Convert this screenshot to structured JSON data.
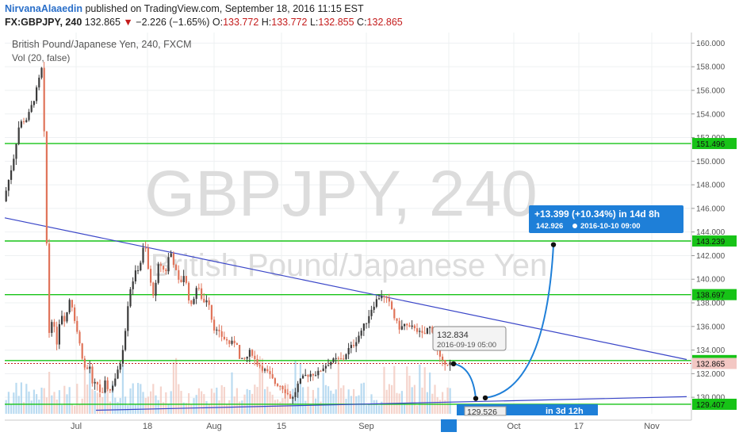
{
  "header": {
    "author": "NirvanaAlaaedin",
    "published_text": "published on TradingView.com, September 18, 2016 11:15 EST",
    "symbol": "FX:GBPJPY, 240",
    "last": "132.865",
    "change": "−2.226 (−1.65%)",
    "o_label": "O:",
    "o_value": "133.772",
    "h_label": "H:",
    "h_value": "133.772",
    "l_label": "L:",
    "l_value": "132.855",
    "c_label": "C:",
    "c_value": "132.865"
  },
  "chart_data": {
    "type": "candlestick",
    "title": "British Pound/Japanese Yen, 240, FXCM",
    "subtitle": "Vol (20, false)",
    "watermark_symbol": "GBPJPY, 240",
    "watermark_name": "British Pound/Japanese Yen",
    "x_tick_labels": [
      "Jul",
      "18",
      "Aug",
      "15",
      "Sep",
      "19",
      "Oct",
      "17",
      "Nov"
    ],
    "y_range": [
      128.6,
      160.9
    ],
    "y_ticks": [
      130,
      132,
      134,
      136,
      138,
      140,
      142,
      144,
      146,
      148,
      150,
      152,
      154,
      156,
      158,
      160
    ],
    "y_tick_labels": [
      "130.000",
      "132.000",
      "134.000",
      "136.000",
      "138.000",
      "140.000",
      "142.000",
      "144.000",
      "146.000",
      "148.000",
      "150.000",
      "152.000",
      "154.000",
      "156.000",
      "158.000",
      "160.000"
    ],
    "price_path": [
      [
        0,
        146.6
      ],
      [
        12,
        150.0
      ],
      [
        20,
        153.2
      ],
      [
        30,
        153.6
      ],
      [
        40,
        155.6
      ],
      [
        48,
        157.8
      ],
      [
        50,
        160.3
      ],
      [
        52,
        147.0
      ],
      [
        55,
        142.0
      ],
      [
        58,
        134.5
      ],
      [
        62,
        137.5
      ],
      [
        66,
        134.0
      ],
      [
        72,
        137.2
      ],
      [
        78,
        136.5
      ],
      [
        84,
        138.6
      ],
      [
        90,
        136.5
      ],
      [
        96,
        134.5
      ],
      [
        100,
        133.2
      ],
      [
        104,
        132.0
      ],
      [
        108,
        133.0
      ],
      [
        112,
        131.0
      ],
      [
        118,
        131.2
      ],
      [
        124,
        130.0
      ],
      [
        128,
        131.2
      ],
      [
        134,
        130.5
      ],
      [
        140,
        131.5
      ],
      [
        146,
        132.5
      ],
      [
        150,
        134.0
      ],
      [
        155,
        136.5
      ],
      [
        158,
        138.8
      ],
      [
        162,
        139.7
      ],
      [
        166,
        140.5
      ],
      [
        172,
        141.2
      ],
      [
        178,
        143.2
      ],
      [
        184,
        140.0
      ],
      [
        190,
        138.5
      ],
      [
        196,
        141.5
      ],
      [
        204,
        140.5
      ],
      [
        210,
        142.5
      ],
      [
        216,
        141.0
      ],
      [
        222,
        139.5
      ],
      [
        228,
        140.5
      ],
      [
        236,
        137.5
      ],
      [
        244,
        139.5
      ],
      [
        252,
        138.0
      ],
      [
        258,
        138.5
      ],
      [
        264,
        136.0
      ],
      [
        270,
        135.5
      ],
      [
        278,
        135.0
      ],
      [
        286,
        134.5
      ],
      [
        294,
        134.8
      ],
      [
        298,
        133.0
      ],
      [
        306,
        133.3
      ],
      [
        312,
        134.0
      ],
      [
        318,
        133.0
      ],
      [
        326,
        132.5
      ],
      [
        334,
        132.0
      ],
      [
        342,
        131.2
      ],
      [
        350,
        131.0
      ],
      [
        358,
        130.3
      ],
      [
        364,
        129.8
      ],
      [
        372,
        131.2
      ],
      [
        380,
        131.8
      ],
      [
        388,
        132.0
      ],
      [
        396,
        132.0
      ],
      [
        404,
        132.6
      ],
      [
        412,
        133.0
      ],
      [
        420,
        133.2
      ],
      [
        428,
        133.2
      ],
      [
        434,
        134.0
      ],
      [
        442,
        134.5
      ],
      [
        450,
        135.5
      ],
      [
        458,
        136.5
      ],
      [
        464,
        137.5
      ],
      [
        470,
        138.2
      ],
      [
        476,
        138.7
      ],
      [
        482,
        138.3
      ],
      [
        488,
        137.8
      ],
      [
        494,
        136.5
      ],
      [
        500,
        135.8
      ],
      [
        506,
        136.2
      ],
      [
        512,
        135.8
      ],
      [
        518,
        136.0
      ],
      [
        524,
        135.5
      ],
      [
        530,
        135.2
      ],
      [
        536,
        136.0
      ],
      [
        542,
        135.6
      ],
      [
        548,
        133.8
      ],
      [
        552,
        132.9
      ],
      [
        556,
        133.0
      ],
      [
        560,
        132.9
      ]
    ],
    "horizontal_levels": [
      {
        "value": 151.496,
        "label": "151.496",
        "color": "#17c317"
      },
      {
        "value": 143.239,
        "label": "143.239",
        "color": "#17c317"
      },
      {
        "value": 138.697,
        "label": "138.697",
        "color": "#17c317"
      },
      {
        "value": 133.11,
        "label": "133.110",
        "color": "#17c317"
      },
      {
        "value": 129.407,
        "label": "129.407",
        "color": "#17c317"
      }
    ],
    "last_price": {
      "value": 132.865,
      "label": "132.865",
      "color": "#c41c1c"
    },
    "trendlines": [
      {
        "from": [
          0,
          145.2
        ],
        "to": [
          860,
          133.2
        ],
        "color": "#3a46c8"
      },
      {
        "from": [
          115,
          128.9
        ],
        "to": [
          860,
          130.05
        ],
        "color": "#3a46c8"
      }
    ],
    "projection_points": [
      {
        "x": 566,
        "y": 132.834
      },
      {
        "x": 594,
        "y": 129.9
      },
      {
        "x": 606,
        "y": 129.95
      },
      {
        "x": 692,
        "y": 142.926
      }
    ],
    "callout_mid": {
      "value": "132.834",
      "date": "2016-09-19 05:00"
    },
    "callout_low": {
      "value": "129.526",
      "text": "in 3d 12h"
    },
    "callout_target": {
      "line1": "+13.399 (+10.34%) in 14d 8h",
      "line2": "142.926",
      "line3": "2016-10-10  09:00"
    },
    "colors": {
      "up": "#3b3b3b",
      "down": "#e0745a",
      "volume": "#a9d2ee",
      "grid": "#eef0f2",
      "level": "#17c317",
      "trend": "#3a46c8",
      "callout": "#1e7fd8"
    }
  }
}
